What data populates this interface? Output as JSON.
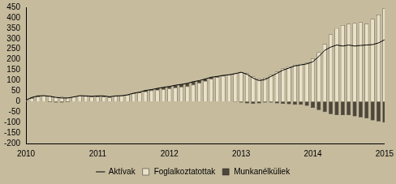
{
  "chart_data": {
    "type": "bar",
    "stacked": true,
    "legend": "bottom",
    "grid": false,
    "categories": [
      "2010",
      null,
      null,
      null,
      null,
      null,
      null,
      null,
      null,
      null,
      null,
      null,
      "2011",
      null,
      null,
      null,
      null,
      null,
      null,
      null,
      null,
      null,
      null,
      null,
      "2012",
      null,
      null,
      null,
      null,
      null,
      null,
      null,
      null,
      null,
      null,
      null,
      "2013",
      null,
      null,
      null,
      null,
      null,
      null,
      null,
      null,
      null,
      null,
      null,
      "2014",
      null,
      null,
      null,
      null,
      null,
      null,
      null,
      null,
      null,
      null,
      null,
      "2015"
    ],
    "series": [
      {
        "name": "Foglalkoztatottak",
        "type": "bar",
        "color": "#e9e1c9",
        "values": [
          5,
          15,
          22,
          28,
          28,
          25,
          22,
          20,
          22,
          28,
          25,
          22,
          22,
          22,
          20,
          25,
          28,
          32,
          38,
          42,
          48,
          52,
          55,
          58,
          62,
          66,
          70,
          72,
          80,
          88,
          98,
          108,
          115,
          122,
          128,
          135,
          140,
          135,
          120,
          108,
          112,
          128,
          142,
          158,
          168,
          175,
          180,
          185,
          205,
          235,
          275,
          320,
          350,
          365,
          372,
          375,
          378,
          372,
          395,
          415,
          445
        ]
      },
      {
        "name": "Munkanélküliek",
        "type": "bar",
        "color": "#4d463a",
        "values": [
          2,
          5,
          5,
          0,
          -3,
          -5,
          -5,
          -3,
          0,
          0,
          2,
          3,
          5,
          5,
          3,
          2,
          0,
          0,
          2,
          3,
          5,
          5,
          8,
          10,
          10,
          12,
          12,
          15,
          15,
          12,
          10,
          8,
          5,
          3,
          0,
          -2,
          -5,
          -8,
          -10,
          -8,
          -5,
          -5,
          -8,
          -10,
          -12,
          -15,
          -15,
          -20,
          -30,
          -40,
          -50,
          -60,
          -65,
          -65,
          -65,
          -70,
          -75,
          -80,
          -90,
          -95,
          -100
        ]
      },
      {
        "name": "Aktívak",
        "type": "line",
        "color": "#000000",
        "values": [
          7,
          20,
          27,
          28,
          25,
          20,
          17,
          17,
          22,
          28,
          27,
          25,
          27,
          27,
          23,
          27,
          28,
          32,
          40,
          45,
          53,
          57,
          63,
          68,
          72,
          78,
          82,
          87,
          95,
          100,
          108,
          116,
          120,
          125,
          128,
          133,
          140,
          130,
          112,
          100,
          105,
          120,
          135,
          150,
          160,
          170,
          175,
          180,
          190,
          215,
          245,
          260,
          270,
          265,
          270,
          265,
          268,
          270,
          272,
          280,
          295
        ]
      }
    ],
    "ylim": [
      -200,
      450
    ],
    "yticks": [
      -200,
      -150,
      -100,
      -50,
      0,
      50,
      100,
      150,
      200,
      250,
      300,
      350,
      400,
      450
    ]
  }
}
